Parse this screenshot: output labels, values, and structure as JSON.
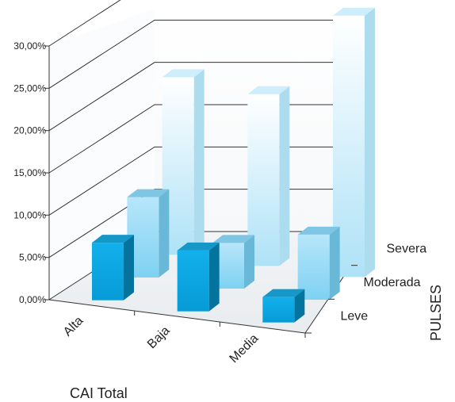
{
  "chart_data": {
    "type": "bar",
    "title": "",
    "xlabel": "CAI Total",
    "zlabel": "PULSES",
    "categories": [
      "Alta",
      "Baja",
      "Media"
    ],
    "series": [
      {
        "name": "Leve",
        "values": [
          6.8,
          7.2,
          3.0
        ]
      },
      {
        "name": "Moderada",
        "values": [
          9.5,
          5.4,
          7.7
        ]
      },
      {
        "name": "Severa",
        "values": [
          21.0,
          20.3,
          30.9
        ]
      }
    ],
    "series_colors": [
      "#0aa2dc",
      "#7fd0f0",
      "#dff3fc"
    ],
    "yticks": [
      "0,00%",
      "5,00%",
      "10,00%",
      "15,00%",
      "20,00%",
      "25,00%",
      "30,00%"
    ],
    "ylim": [
      0,
      30
    ],
    "grid": true
  }
}
